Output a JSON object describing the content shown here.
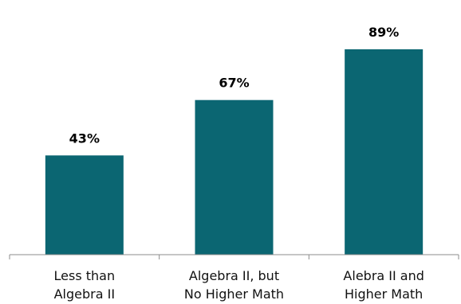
{
  "chart_data": {
    "type": "bar",
    "categories": [
      [
        "Less than",
        "Algebra II"
      ],
      [
        "Algebra II, but",
        "No Higher Math"
      ],
      [
        "Alebra II and",
        "Higher Math"
      ]
    ],
    "values": [
      43,
      67,
      89
    ],
    "value_labels": [
      "43%",
      "67%",
      "89%"
    ],
    "ylim": [
      0,
      100
    ],
    "bar_color": "#0b6672",
    "axis_color": "#8c8c8c",
    "grid": false,
    "legend": "none"
  }
}
